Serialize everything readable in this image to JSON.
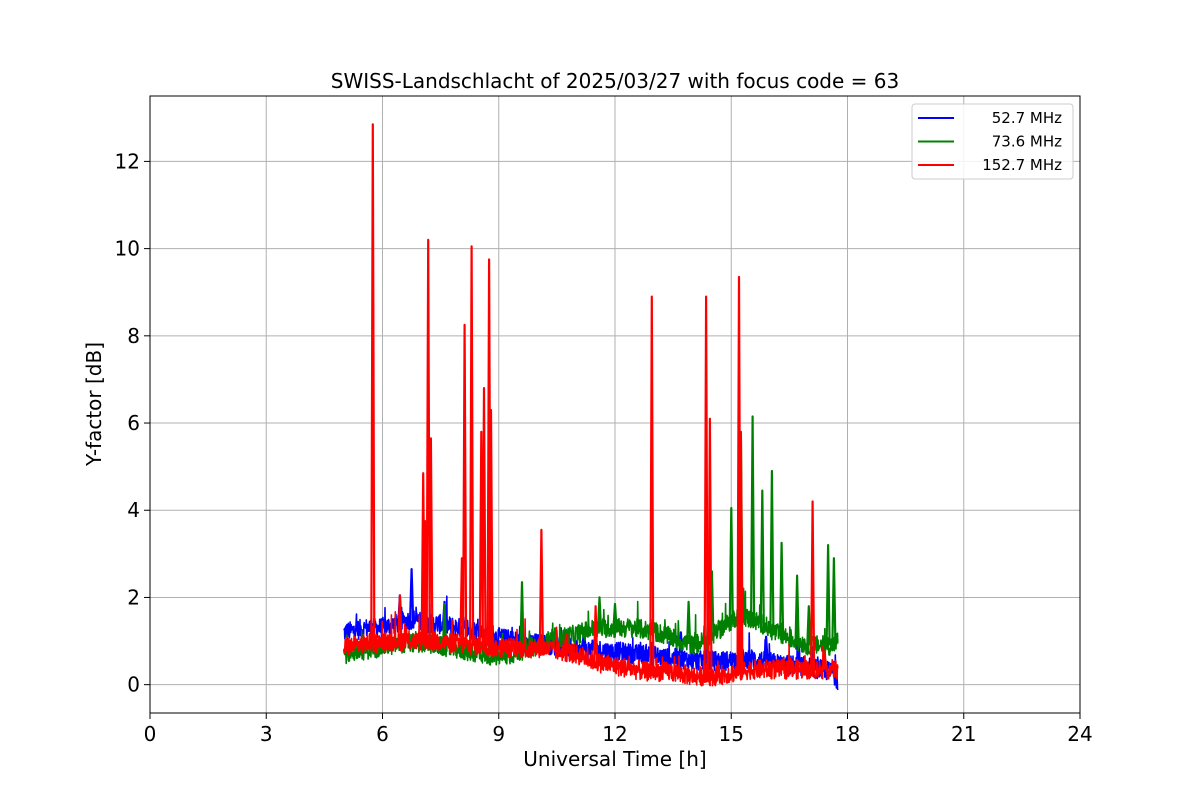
{
  "chart_data": {
    "type": "line",
    "title": "SWISS-Landschlacht of 2025/03/27 with focus code = 63",
    "xlabel": "Universal Time [h]",
    "ylabel": "Y-factor [dB]",
    "xlim": [
      0,
      24
    ],
    "ylim": [
      -0.65,
      13.5
    ],
    "xticks": [
      0,
      3,
      6,
      9,
      12,
      15,
      18,
      21,
      24
    ],
    "yticks": [
      0,
      2,
      4,
      6,
      8,
      10,
      12
    ],
    "grid": true,
    "legend_position": "top-right",
    "series": [
      {
        "name": "52.7 MHz",
        "color": "#0000ff",
        "x": [
          5.0,
          5.3,
          5.6,
          5.9,
          6.2,
          6.5,
          6.8,
          7.1,
          7.4,
          7.7,
          8.0,
          8.3,
          8.6,
          8.9,
          9.2,
          9.5,
          9.8,
          10.1,
          10.4,
          10.7,
          11.0,
          11.3,
          11.6,
          11.9,
          12.2,
          12.5,
          12.8,
          13.1,
          13.4,
          13.7,
          14.0,
          14.3,
          14.6,
          14.9,
          15.2,
          15.5,
          15.8,
          16.1,
          16.4,
          16.7,
          17.0,
          17.3,
          17.6,
          17.75
        ],
        "y": [
          1.2,
          1.25,
          1.3,
          1.3,
          1.35,
          1.45,
          1.5,
          1.4,
          1.4,
          1.35,
          1.3,
          1.25,
          1.2,
          1.1,
          1.05,
          1.0,
          0.95,
          0.95,
          0.9,
          0.85,
          0.85,
          0.8,
          0.8,
          0.75,
          0.75,
          0.7,
          0.7,
          0.65,
          0.6,
          0.6,
          0.55,
          0.55,
          0.55,
          0.55,
          0.6,
          0.6,
          0.55,
          0.5,
          0.45,
          0.45,
          0.4,
          0.35,
          0.3,
          0.1
        ],
        "peaks": [
          [
            6.75,
            2.65
          ],
          [
            6.45,
            2.05
          ],
          [
            7.6,
            1.9
          ],
          [
            9.6,
            1.5
          ],
          [
            11.2,
            1.3
          ],
          [
            13.7,
            1.2
          ],
          [
            15.9,
            1.1
          ]
        ]
      },
      {
        "name": "73.6 MHz",
        "color": "#008000",
        "x": [
          5.0,
          5.3,
          5.6,
          5.9,
          6.2,
          6.5,
          6.8,
          7.1,
          7.4,
          7.7,
          8.0,
          8.3,
          8.6,
          8.9,
          9.2,
          9.5,
          9.8,
          10.1,
          10.4,
          10.7,
          11.0,
          11.3,
          11.6,
          11.9,
          12.2,
          12.5,
          12.8,
          13.1,
          13.4,
          13.7,
          14.0,
          14.3,
          14.6,
          14.9,
          15.2,
          15.5,
          15.8,
          16.1,
          16.4,
          16.7,
          17.0,
          17.3,
          17.6,
          17.75
        ],
        "y": [
          0.7,
          0.75,
          0.8,
          0.85,
          0.9,
          0.95,
          0.95,
          0.95,
          0.9,
          0.85,
          0.8,
          0.75,
          0.7,
          0.65,
          0.65,
          0.75,
          0.85,
          0.9,
          1.0,
          1.1,
          1.15,
          1.25,
          1.3,
          1.3,
          1.3,
          1.3,
          1.25,
          1.2,
          1.1,
          1.0,
          0.9,
          1.0,
          1.2,
          1.4,
          1.6,
          1.5,
          1.4,
          1.2,
          1.1,
          1.0,
          0.9,
          0.9,
          0.9,
          1.0
        ],
        "peaks": [
          [
            7.6,
            1.85
          ],
          [
            9.6,
            2.35
          ],
          [
            11.6,
            2.0
          ],
          [
            12.0,
            1.85
          ],
          [
            13.9,
            1.9
          ],
          [
            14.5,
            2.6
          ],
          [
            15.0,
            4.05
          ],
          [
            15.25,
            5.8
          ],
          [
            15.55,
            6.15
          ],
          [
            15.8,
            4.45
          ],
          [
            16.05,
            4.9
          ],
          [
            16.3,
            3.25
          ],
          [
            16.7,
            2.5
          ],
          [
            17.0,
            1.8
          ],
          [
            17.5,
            3.2
          ],
          [
            17.65,
            2.9
          ]
        ]
      },
      {
        "name": "152.7 MHz",
        "color": "#ff0000",
        "x": [
          5.0,
          5.3,
          5.6,
          5.9,
          6.2,
          6.5,
          6.8,
          7.1,
          7.4,
          7.7,
          8.0,
          8.3,
          8.6,
          8.9,
          9.2,
          9.5,
          9.8,
          10.1,
          10.4,
          10.7,
          11.0,
          11.3,
          11.6,
          11.9,
          12.2,
          12.5,
          12.8,
          13.1,
          13.4,
          13.7,
          14.0,
          14.3,
          14.6,
          14.9,
          15.2,
          15.5,
          15.8,
          16.1,
          16.4,
          16.7,
          17.0,
          17.3,
          17.6,
          17.75
        ],
        "y": [
          0.85,
          0.9,
          0.95,
          0.95,
          1.0,
          1.0,
          1.0,
          1.0,
          1.0,
          0.95,
          0.95,
          0.9,
          0.9,
          0.85,
          0.85,
          0.85,
          0.8,
          0.85,
          0.8,
          0.75,
          0.7,
          0.6,
          0.5,
          0.45,
          0.4,
          0.35,
          0.3,
          0.3,
          0.3,
          0.25,
          0.2,
          0.2,
          0.2,
          0.25,
          0.3,
          0.35,
          0.35,
          0.35,
          0.35,
          0.35,
          0.35,
          0.35,
          0.35,
          0.35
        ],
        "peaks": [
          [
            5.75,
            12.85
          ],
          [
            6.45,
            2.05
          ],
          [
            7.05,
            4.85
          ],
          [
            7.1,
            3.75
          ],
          [
            7.18,
            10.2
          ],
          [
            7.25,
            5.65
          ],
          [
            8.05,
            2.9
          ],
          [
            8.12,
            8.25
          ],
          [
            8.3,
            10.05
          ],
          [
            8.55,
            5.8
          ],
          [
            8.62,
            6.8
          ],
          [
            8.75,
            9.75
          ],
          [
            8.8,
            6.3
          ],
          [
            10.1,
            3.55
          ],
          [
            11.5,
            1.8
          ],
          [
            12.95,
            8.9
          ],
          [
            14.35,
            8.9
          ],
          [
            14.45,
            6.1
          ],
          [
            15.2,
            9.35
          ],
          [
            15.25,
            5.75
          ],
          [
            17.1,
            4.2
          ]
        ]
      }
    ]
  }
}
